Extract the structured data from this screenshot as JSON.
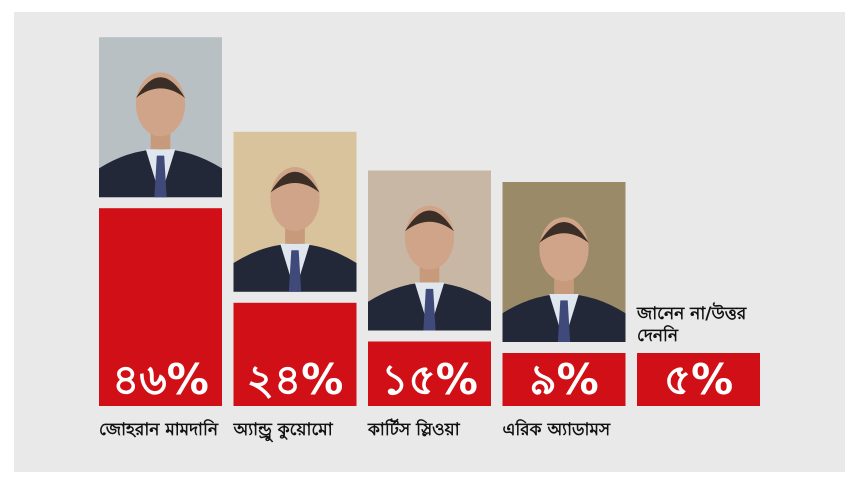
{
  "chart_data": {
    "type": "bar",
    "title": "",
    "xlabel": "",
    "ylabel": "",
    "ylim": [
      0,
      50
    ],
    "grid": false,
    "categories": [
      "জোহরান মামদানি",
      "অ্যান্ড্রু কুয়োমো",
      "কার্টিস স্লিওয়া",
      "এরিক অ্যাডামস",
      "জানেন না/উত্তর দেননি"
    ],
    "values": [
      46,
      24,
      15,
      9,
      5
    ],
    "value_labels": [
      "৪৬%",
      "২৪%",
      "১৫%",
      "৯%",
      "৫%"
    ],
    "photos": [
      "portrait-photo",
      "portrait-photo",
      "portrait-photo",
      "portrait-photo",
      ""
    ],
    "series": [
      {
        "values": [
          46,
          24,
          15,
          9,
          5
        ]
      }
    ]
  },
  "colors": {
    "bar": "#d01016",
    "panel": "#e9e9e9",
    "value_text": "#ffffff",
    "label_text": "#111111"
  }
}
